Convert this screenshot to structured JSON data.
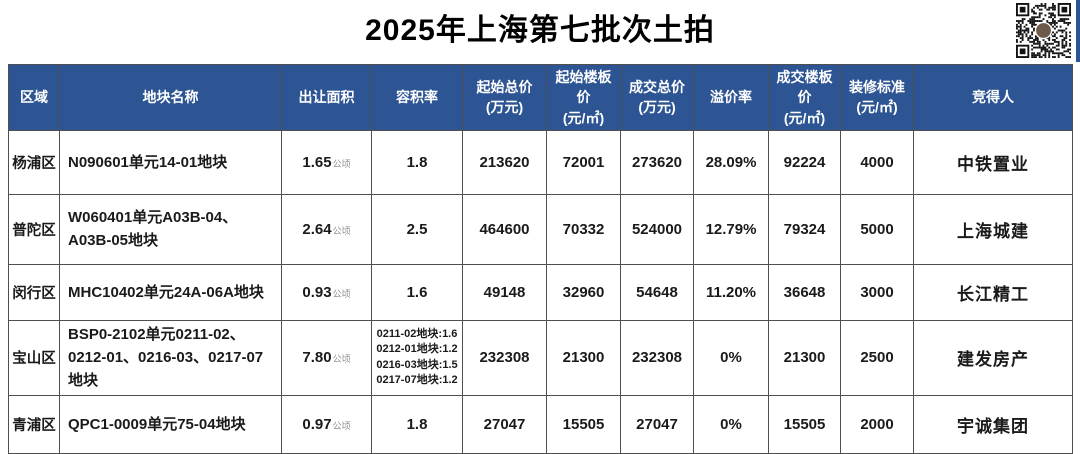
{
  "title": "2025年上海第七批次土拍",
  "colors": {
    "header_bg": "#2d5493",
    "border": "#4f4f4f",
    "body_text": "#1a1a1a",
    "unit_text": "#8c8c8c"
  },
  "table": {
    "area_unit": "公顷",
    "columns": [
      {
        "label": "区域",
        "unit": ""
      },
      {
        "label": "地块名称",
        "unit": ""
      },
      {
        "label": "出让面积",
        "unit": ""
      },
      {
        "label": "容积率",
        "unit": ""
      },
      {
        "label": "起始总价",
        "unit": "(万元)"
      },
      {
        "label": "起始楼板价",
        "unit": "(元/㎡)"
      },
      {
        "label": "成交总价",
        "unit": "(万元)"
      },
      {
        "label": "溢价率",
        "unit": ""
      },
      {
        "label": "成交楼板价",
        "unit": "(元/㎡)"
      },
      {
        "label": "装修标准",
        "unit": "(元/㎡)"
      },
      {
        "label": "竞得人",
        "unit": ""
      }
    ],
    "rows": [
      {
        "region": "杨浦区",
        "plot_name": "N090601单元14-01地块",
        "area": "1.65",
        "far": "1.8",
        "start_total": "213620",
        "start_floor": "72001",
        "deal_total": "273620",
        "premium": "28.09%",
        "deal_floor": "92224",
        "decoration": "4000",
        "winner": "中铁置业"
      },
      {
        "region": "普陀区",
        "plot_name": "W060401单元A03B-04、A03B-05地块",
        "area": "2.64",
        "far": "2.5",
        "start_total": "464600",
        "start_floor": "70332",
        "deal_total": "524000",
        "premium": "12.79%",
        "deal_floor": "79324",
        "decoration": "5000",
        "winner": "上海城建"
      },
      {
        "region": "闵行区",
        "plot_name": "MHC10402单元24A-06A地块",
        "area": "0.93",
        "far": "1.6",
        "start_total": "49148",
        "start_floor": "32960",
        "deal_total": "54648",
        "premium": "11.20%",
        "deal_floor": "36648",
        "decoration": "3000",
        "winner": "长江精工"
      },
      {
        "region": "宝山区",
        "plot_name": "BSP0-2102单元0211-02、0212-01、0216-03、0217-07地块",
        "area": "7.80",
        "far_lines": [
          "0211-02地块:1.6",
          "0212-01地块:1.2",
          "0216-03地块:1.5",
          "0217-07地块:1.2"
        ],
        "start_total": "232308",
        "start_floor": "21300",
        "deal_total": "232308",
        "premium": "0%",
        "deal_floor": "21300",
        "decoration": "2500",
        "winner": "建发房产"
      },
      {
        "region": "青浦区",
        "plot_name": "QPC1-0009单元75-04地块",
        "area": "0.97",
        "far": "1.8",
        "start_total": "27047",
        "start_floor": "15505",
        "deal_total": "27047",
        "premium": "0%",
        "deal_floor": "15505",
        "decoration": "2000",
        "winner": "宇诚集团"
      }
    ]
  }
}
